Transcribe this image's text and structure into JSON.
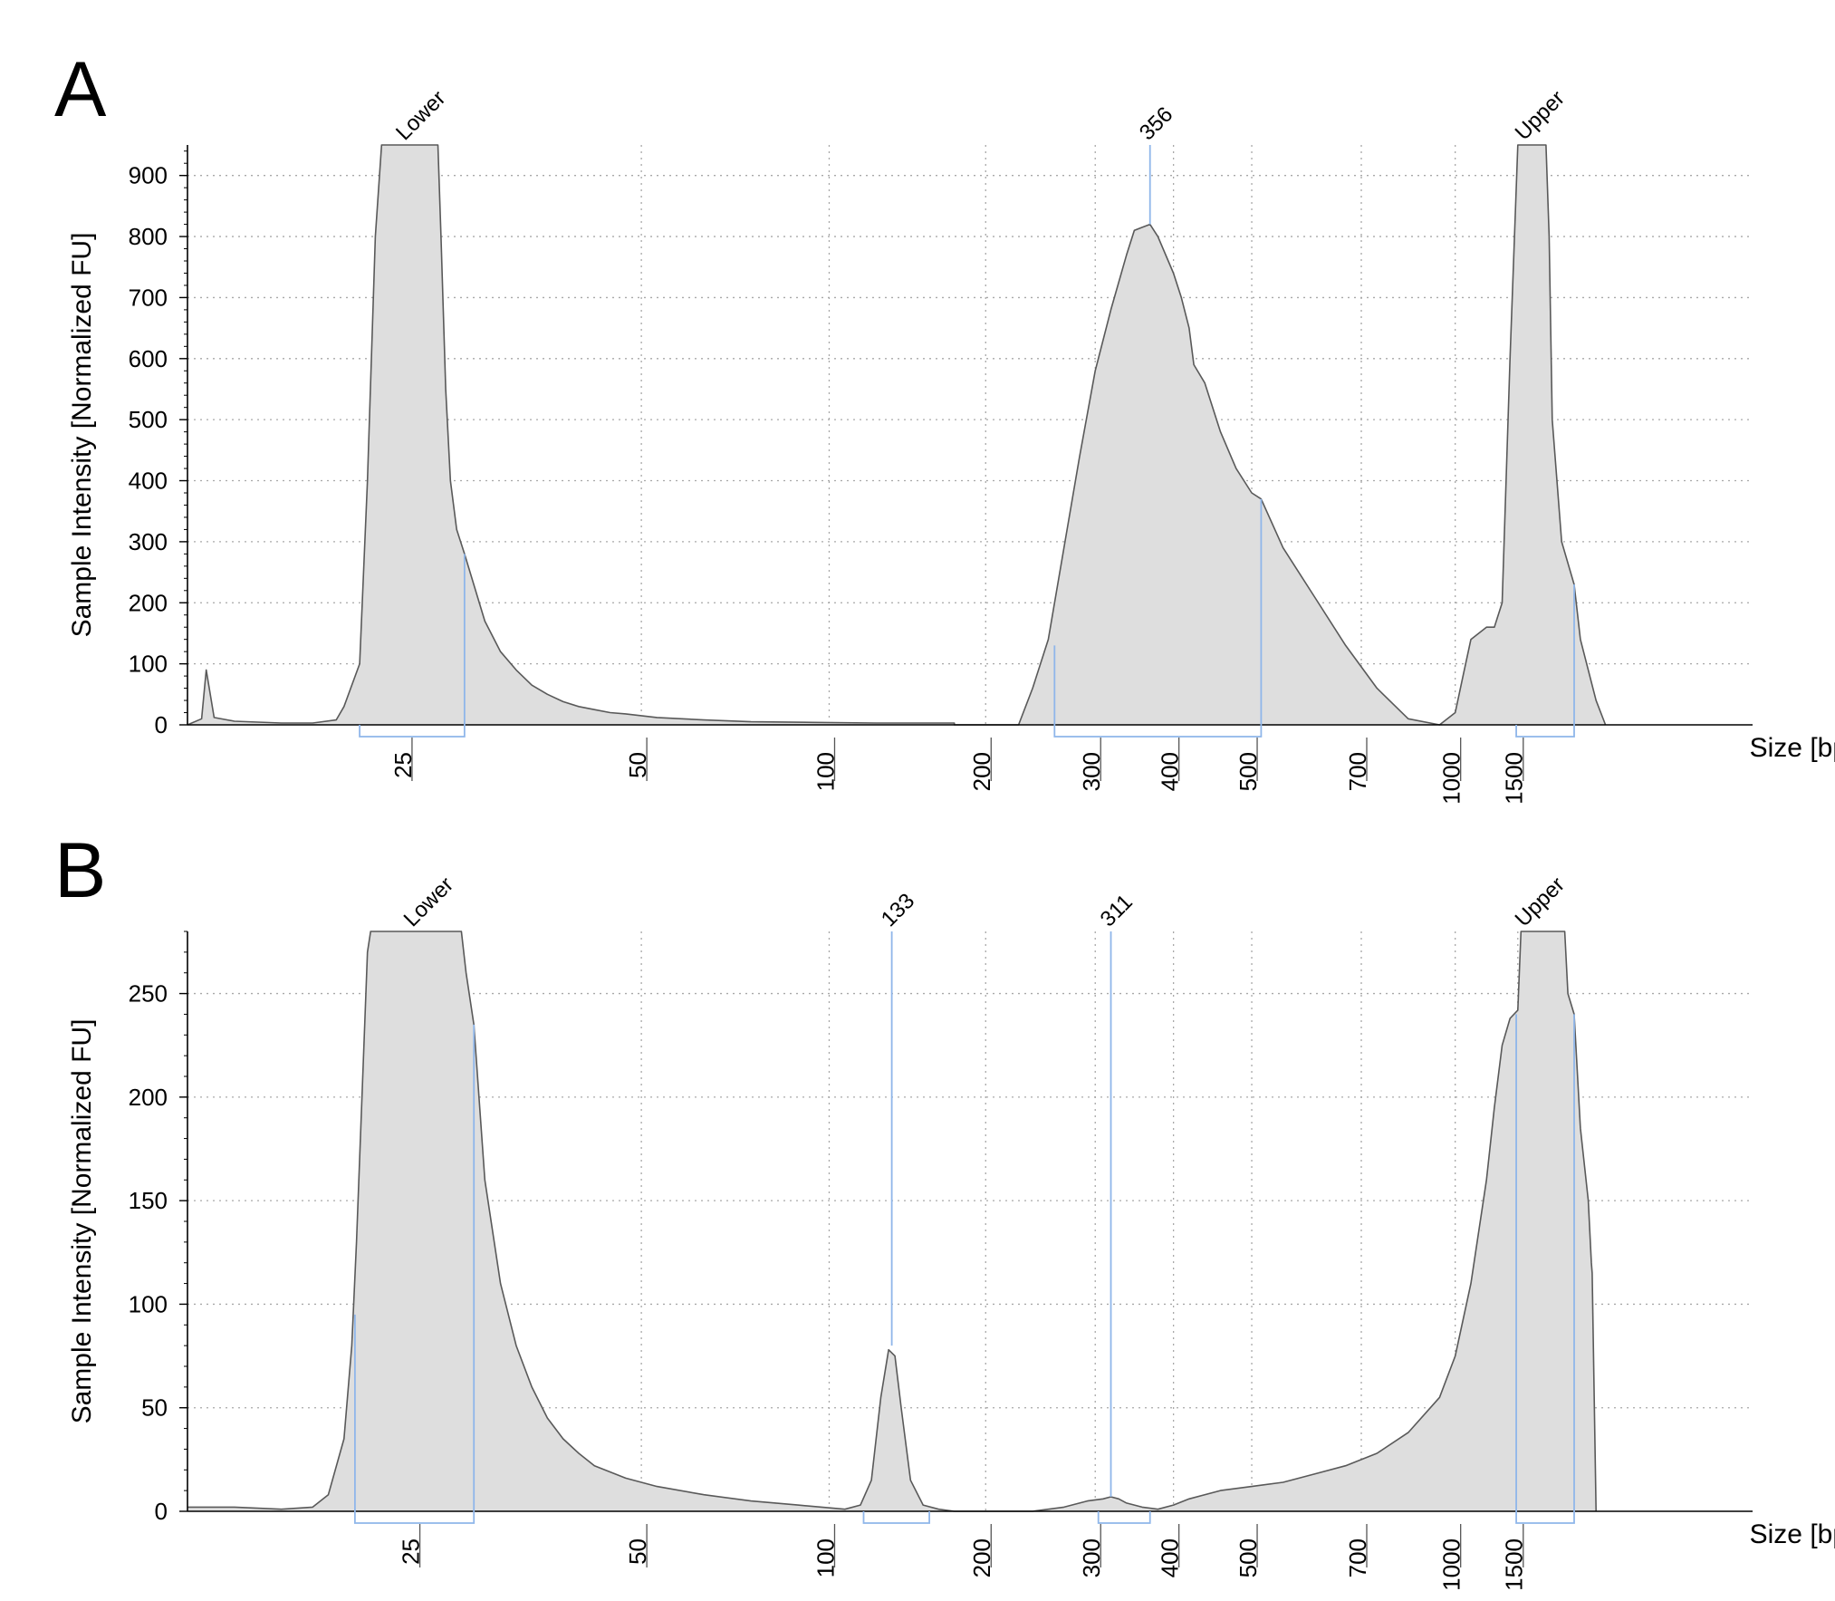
{
  "colors": {
    "fill": "#dedede",
    "trace": "#595959",
    "marker": "#8fb6ea",
    "grid": "#a8a8a8",
    "axis": "#000000",
    "text": "#000000"
  },
  "chart_data": [
    {
      "panel_label": "A",
      "type": "area",
      "ylabel": "Sample Intensity [Normalized FU]",
      "xlabel": "Size [bp]",
      "ylim": [
        0,
        950
      ],
      "y_ticks": [
        0,
        100,
        200,
        300,
        400,
        500,
        600,
        700,
        800,
        900
      ],
      "x_ticks": [
        "25",
        "50",
        "100",
        "200",
        "300",
        "400",
        "500",
        "700",
        "1000",
        "1500"
      ],
      "x_tick_positions": [
        0.14,
        0.29,
        0.41,
        0.51,
        0.58,
        0.63,
        0.68,
        0.75,
        0.81,
        0.85
      ],
      "grid": true,
      "peak_labels": [
        {
          "text": "Lower",
          "x": 0.14
        },
        {
          "text": "356",
          "x": 0.615
        },
        {
          "text": "Upper",
          "x": 0.855
        }
      ],
      "regions": [
        {
          "x0": 0.11,
          "x1": 0.177
        },
        {
          "x0": 0.554,
          "x1": 0.686
        },
        {
          "x0": 0.849,
          "x1": 0.886
        }
      ],
      "region_edges": [
        {
          "x": 0.177,
          "y": 280
        },
        {
          "x": 0.554,
          "y": 130
        },
        {
          "x": 0.686,
          "y": 370
        },
        {
          "x": 0.886,
          "y": 230
        }
      ],
      "peak_lines": [
        {
          "x": 0.615,
          "y": 820
        }
      ],
      "series": [
        {
          "x": [
            0,
            0.009,
            0.012,
            0.017,
            0.03,
            0.06,
            0.08,
            0.095,
            0.1,
            0.11,
            0.115,
            0.12,
            0.124,
            0.128,
            0.13,
            0.14,
            0.16,
            0.162,
            0.165,
            0.168,
            0.172,
            0.177,
            0.19,
            0.2,
            0.21,
            0.22,
            0.23,
            0.24,
            0.25,
            0.26,
            0.27,
            0.28,
            0.3,
            0.33,
            0.36,
            0.4,
            0.44,
            0.49,
            0.49001,
            0.531,
            0.54,
            0.55,
            0.56,
            0.57,
            0.58,
            0.59,
            0.6,
            0.605,
            0.61,
            0.615,
            0.62,
            0.63,
            0.635,
            0.64,
            0.643,
            0.65,
            0.66,
            0.67,
            0.68,
            0.686,
            0.7,
            0.72,
            0.74,
            0.76,
            0.78,
            0.8,
            0.81,
            0.815,
            0.82,
            0.83,
            0.835,
            0.84,
            0.845,
            0.85,
            0.852,
            0.855,
            0.86,
            0.868,
            0.87,
            0.872,
            0.878,
            0.886,
            0.89,
            0.9,
            0.906
          ],
          "y": [
            0,
            10,
            90,
            12,
            6,
            3,
            3,
            8,
            30,
            100,
            400,
            800,
            950,
            950,
            950,
            950,
            950,
            800,
            550,
            400,
            320,
            280,
            170,
            120,
            90,
            65,
            50,
            38,
            30,
            25,
            20,
            18,
            12,
            8,
            5,
            4,
            3,
            3,
            0,
            0,
            60,
            140,
            290,
            440,
            580,
            680,
            770,
            810,
            815,
            820,
            800,
            740,
            700,
            650,
            590,
            560,
            480,
            420,
            380,
            370,
            290,
            210,
            130,
            60,
            10,
            0,
            20,
            80,
            140,
            160,
            160,
            200,
            600,
            950,
            950,
            950,
            950,
            950,
            800,
            500,
            300,
            230,
            140,
            40,
            0
          ]
        }
      ]
    },
    {
      "panel_label": "B",
      "type": "area",
      "ylabel": "Sample Intensity [Normalized FU]",
      "xlabel": "Size [bp]",
      "ylim": [
        0,
        280
      ],
      "y_ticks": [
        0,
        50,
        100,
        150,
        200,
        250
      ],
      "x_ticks": [
        "25",
        "50",
        "100",
        "200",
        "300",
        "400",
        "500",
        "700",
        "1000",
        "1500"
      ],
      "x_tick_positions": [
        0.145,
        0.29,
        0.41,
        0.51,
        0.58,
        0.63,
        0.68,
        0.75,
        0.81,
        0.85
      ],
      "grid": true,
      "peak_labels": [
        {
          "text": "Lower",
          "x": 0.145
        },
        {
          "text": "133",
          "x": 0.45
        },
        {
          "text": "311",
          "x": 0.59
        },
        {
          "text": "Upper",
          "x": 0.855
        }
      ],
      "regions": [
        {
          "x0": 0.107,
          "x1": 0.183
        },
        {
          "x0": 0.432,
          "x1": 0.474
        },
        {
          "x0": 0.582,
          "x1": 0.615
        },
        {
          "x0": 0.849,
          "x1": 0.886
        }
      ],
      "region_edges": [
        {
          "x": 0.107,
          "y": 95
        },
        {
          "x": 0.183,
          "y": 235
        },
        {
          "x": 0.849,
          "y": 240
        },
        {
          "x": 0.886,
          "y": 240
        }
      ],
      "peak_lines": [
        {
          "x": 0.45,
          "y": 80
        },
        {
          "x": 0.59,
          "y": 7
        }
      ],
      "series": [
        {
          "x": [
            0,
            0.03,
            0.06,
            0.08,
            0.09,
            0.1,
            0.105,
            0.108,
            0.115,
            0.117,
            0.175,
            0.178,
            0.183,
            0.19,
            0.2,
            0.21,
            0.22,
            0.23,
            0.24,
            0.25,
            0.26,
            0.28,
            0.3,
            0.33,
            0.36,
            0.39,
            0.42,
            0.43,
            0.437,
            0.443,
            0.448,
            0.452,
            0.456,
            0.462,
            0.47,
            0.48,
            0.49,
            0.5,
            0.52,
            0.54,
            0.56,
            0.575,
            0.585,
            0.59,
            0.595,
            0.6,
            0.61,
            0.62,
            0.63,
            0.64,
            0.66,
            0.68,
            0.7,
            0.72,
            0.74,
            0.76,
            0.78,
            0.8,
            0.81,
            0.82,
            0.83,
            0.835,
            0.84,
            0.845,
            0.85,
            0.852,
            0.88,
            0.882,
            0.886,
            0.89,
            0.895,
            0.897,
            0.8975,
            0.9
          ],
          "y": [
            2,
            2,
            1,
            2,
            8,
            35,
            80,
            130,
            270,
            280,
            280,
            260,
            235,
            160,
            110,
            80,
            60,
            45,
            35,
            28,
            22,
            16,
            12,
            8,
            5,
            3,
            1,
            3,
            15,
            55,
            78,
            75,
            50,
            15,
            3,
            1,
            0,
            0,
            0,
            0,
            2,
            5,
            6,
            7,
            6,
            4,
            2,
            1,
            3,
            6,
            10,
            12,
            14,
            18,
            22,
            28,
            38,
            55,
            75,
            110,
            160,
            195,
            225,
            238,
            242,
            280,
            280,
            250,
            240,
            185,
            150,
            120,
            115,
            0
          ]
        }
      ]
    }
  ]
}
